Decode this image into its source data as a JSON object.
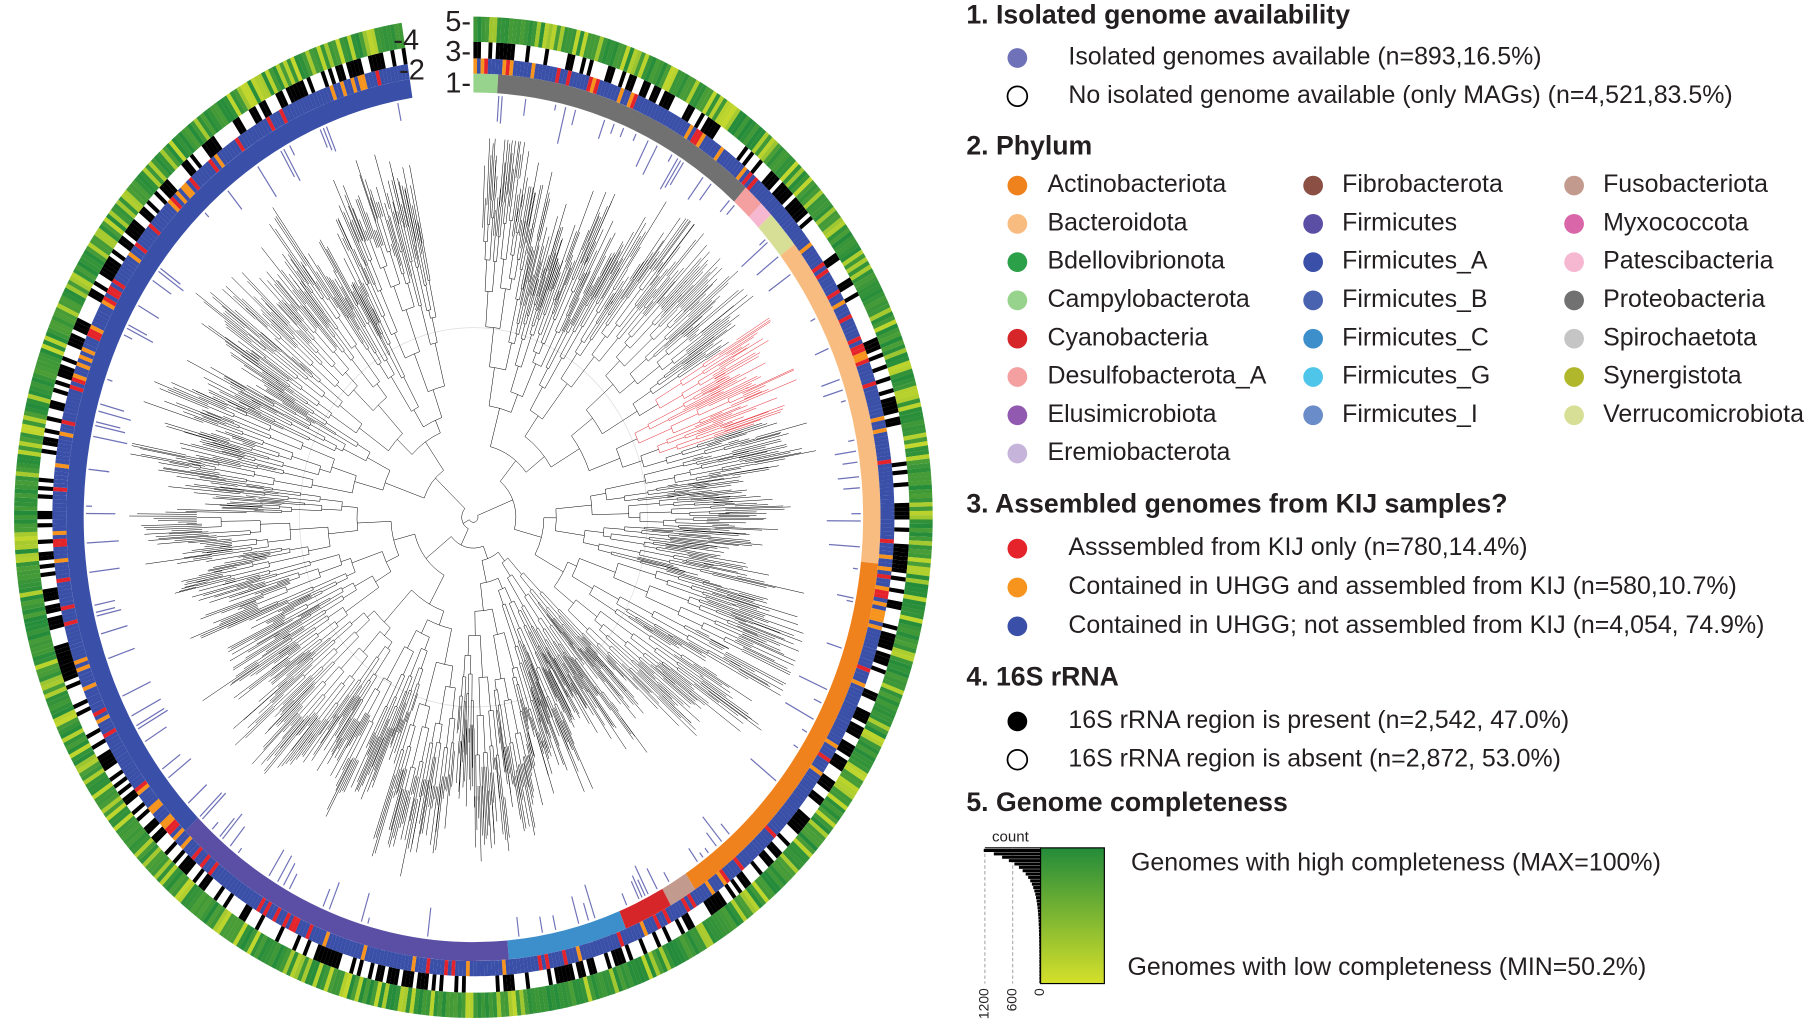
{
  "ring_labels": {
    "r5": "5-",
    "r4": "-4",
    "r3": "3-",
    "r2": "-2",
    "r1": "1-"
  },
  "legend": {
    "isolated": {
      "title": "1. Isolated genome availability",
      "items": [
        {
          "label": "Isolated genomes available (n=893,16.5%)",
          "color": "#6f72b8"
        },
        {
          "label": "No isolated genome available (only MAGs) (n=4,521,83.5%)",
          "color": "#ffffff"
        }
      ]
    },
    "phylum": {
      "title": "2. Phylum",
      "columns": [
        [
          {
            "label": "Actinobacteriota",
            "color": "#f0821e"
          },
          {
            "label": "Bacteroidota",
            "color": "#f9bc80"
          },
          {
            "label": "Bdellovibrionota",
            "color": "#2ca048"
          },
          {
            "label": "Campylobacterota",
            "color": "#98d38e"
          },
          {
            "label": "Cyanobacteria",
            "color": "#d6262a"
          },
          {
            "label": "Desulfobacterota_A",
            "color": "#f4a0a0"
          },
          {
            "label": "Elusimicrobiota",
            "color": "#9159b0"
          },
          {
            "label": "Eremiobacterota",
            "color": "#c6b4da"
          }
        ],
        [
          {
            "label": "Fibrobacterota",
            "color": "#8b4f44"
          },
          {
            "label": "Firmicutes",
            "color": "#5a4fa5"
          },
          {
            "label": "Firmicutes_A",
            "color": "#3a4fa8"
          },
          {
            "label": "Firmicutes_B",
            "color": "#4a63b0"
          },
          {
            "label": "Firmicutes_C",
            "color": "#3d8fcb"
          },
          {
            "label": "Firmicutes_G",
            "color": "#4fc5ea"
          },
          {
            "label": "Firmicutes_I",
            "color": "#6a8cc8"
          }
        ],
        [
          {
            "label": "Fusobacteriota",
            "color": "#c39a8e"
          },
          {
            "label": "Myxococcota",
            "color": "#d866a8"
          },
          {
            "label": "Patescibacteria",
            "color": "#f6b8d0"
          },
          {
            "label": "Proteobacteria",
            "color": "#717171"
          },
          {
            "label": "Spirochaetota",
            "color": "#c5c5c5"
          },
          {
            "label": "Synergistota",
            "color": "#b1b72a"
          },
          {
            "label": "Verrucomicrobiota",
            "color": "#d7df96"
          }
        ]
      ]
    },
    "kij": {
      "title": "3. Assembled genomes from KIJ samples?",
      "items": [
        {
          "label": "Asssembled from KIJ only (n=780,14.4%)",
          "color": "#e4232a"
        },
        {
          "label": "Contained in UHGG and assembled from KIJ (n=580,10.7%)",
          "color": "#f7941d"
        },
        {
          "label": "Contained in UHGG; not assembled from KIJ (n=4,054, 74.9%)",
          "color": "#3a4fa8"
        }
      ]
    },
    "rrna": {
      "title": "4. 16S rRNA",
      "items": [
        {
          "label": "16S rRNA region is present (n=2,542, 47.0%)",
          "color": "#000000"
        },
        {
          "label": "16S rRNA region is absent (n=2,872, 53.0%)",
          "color": "#ffffff"
        }
      ]
    },
    "completeness": {
      "title": "5. Genome completeness",
      "high_label": "Genomes with high completeness (MAX=100%)",
      "low_label": "Genomes with low completeness (MIN=50.2%)",
      "high_color": "#238b3a",
      "low_color": "#d5e02a",
      "histogram": {
        "axis_title": "count",
        "ticks": [
          1200,
          600,
          0
        ]
      }
    }
  }
}
